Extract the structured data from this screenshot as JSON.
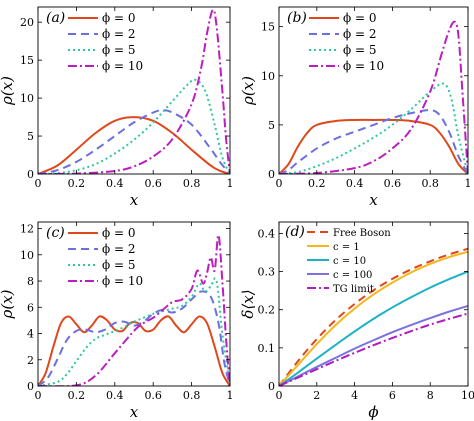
{
  "colors": {
    "red": "#e0471b",
    "blue": "#6b6fe0",
    "green": "#2fc6a0",
    "magenta": "#bd1cc0",
    "yellow": "#f4b81f",
    "teal": "#1bb3c4",
    "violet": "#7a72df",
    "purple": "#b11cc0"
  },
  "chart_data": [
    {
      "type": "line",
      "panel_label": "(a)",
      "xlabel": "x",
      "ylabel": "ρ(x)",
      "xlim": [
        0,
        1
      ],
      "ylim": [
        0,
        22
      ],
      "xticks": [
        "0",
        "0.2",
        "0.4",
        "0.6",
        "0.8",
        "1"
      ],
      "yticks": [
        "0",
        "5",
        "10",
        "15",
        "20"
      ],
      "legend_position": "top-left",
      "series": [
        {
          "name": "ϕ = 0",
          "color": "red",
          "dash": "",
          "x": [
            0,
            0.1,
            0.2,
            0.3,
            0.4,
            0.5,
            0.6,
            0.7,
            0.8,
            0.9,
            0.95,
            1
          ],
          "y": [
            0,
            1.1,
            3.2,
            5.4,
            7.0,
            7.5,
            7.0,
            5.4,
            3.2,
            1.1,
            0.4,
            0
          ]
        },
        {
          "name": "ϕ = 2",
          "color": "blue",
          "dash": "8,5",
          "x": [
            0,
            0.1,
            0.2,
            0.3,
            0.4,
            0.5,
            0.6,
            0.65,
            0.7,
            0.8,
            0.9,
            0.95,
            1
          ],
          "y": [
            0,
            0.5,
            1.6,
            3.2,
            5.0,
            6.8,
            8.1,
            8.4,
            8.1,
            6.5,
            3.3,
            1.5,
            0
          ]
        },
        {
          "name": "ϕ = 5",
          "color": "green",
          "dash": "2,3",
          "x": [
            0,
            0.1,
            0.2,
            0.3,
            0.4,
            0.5,
            0.6,
            0.7,
            0.78,
            0.82,
            0.87,
            0.92,
            0.96,
            1
          ],
          "y": [
            0,
            0.1,
            0.5,
            1.3,
            2.7,
            4.5,
            6.8,
            9.6,
            11.8,
            12.4,
            11.0,
            6.5,
            2.2,
            0
          ]
        },
        {
          "name": "ϕ = 10",
          "color": "magenta",
          "dash": "9,3,2,3",
          "x": [
            0,
            0.2,
            0.4,
            0.5,
            0.6,
            0.7,
            0.8,
            0.85,
            0.88,
            0.91,
            0.93,
            0.96,
            0.98,
            1
          ],
          "y": [
            0,
            0.05,
            0.4,
            1.0,
            2.3,
            4.6,
            9.2,
            14.0,
            18.5,
            21.6,
            19.5,
            11.0,
            4.5,
            0
          ]
        }
      ]
    },
    {
      "type": "line",
      "panel_label": "(b)",
      "xlabel": "x",
      "ylabel": "ρ(x)",
      "xlim": [
        0,
        1
      ],
      "ylim": [
        0,
        17
      ],
      "xticks": [
        "0",
        "0.2",
        "0.4",
        "0.6",
        "0.8",
        "1"
      ],
      "yticks": [
        "0",
        "5",
        "10",
        "15"
      ],
      "legend_position": "top-left",
      "series": [
        {
          "name": "ϕ = 0",
          "color": "red",
          "dash": "",
          "x": [
            0,
            0.05,
            0.1,
            0.15,
            0.2,
            0.3,
            0.4,
            0.5,
            0.6,
            0.7,
            0.8,
            0.85,
            0.9,
            0.95,
            1
          ],
          "y": [
            0,
            1.0,
            2.8,
            4.2,
            5.0,
            5.4,
            5.5,
            5.5,
            5.5,
            5.4,
            5.0,
            4.2,
            2.8,
            1.0,
            0
          ]
        },
        {
          "name": "ϕ = 2",
          "color": "blue",
          "dash": "8,5",
          "x": [
            0,
            0.05,
            0.1,
            0.2,
            0.3,
            0.4,
            0.5,
            0.6,
            0.7,
            0.8,
            0.85,
            0.9,
            0.95,
            1
          ],
          "y": [
            0,
            0.4,
            1.2,
            2.6,
            3.6,
            4.3,
            5.0,
            5.7,
            6.2,
            6.5,
            6.0,
            4.3,
            1.8,
            0
          ]
        },
        {
          "name": "ϕ = 5",
          "color": "green",
          "dash": "2,3",
          "x": [
            0,
            0.1,
            0.2,
            0.3,
            0.4,
            0.5,
            0.6,
            0.7,
            0.8,
            0.87,
            0.91,
            0.95,
            1
          ],
          "y": [
            0,
            0.2,
            0.8,
            1.6,
            2.6,
            3.7,
            5.0,
            6.6,
            8.4,
            9.2,
            7.8,
            3.8,
            0
          ]
        },
        {
          "name": "ϕ = 10",
          "color": "magenta",
          "dash": "9,3,2,3",
          "x": [
            0,
            0.2,
            0.4,
            0.5,
            0.6,
            0.7,
            0.8,
            0.86,
            0.9,
            0.93,
            0.95,
            0.97,
            1
          ],
          "y": [
            0,
            0.1,
            0.6,
            1.3,
            2.6,
            4.6,
            8.4,
            12.2,
            14.6,
            15.5,
            14.0,
            8.5,
            0
          ]
        }
      ]
    },
    {
      "type": "line",
      "panel_label": "(c)",
      "xlabel": "x",
      "ylabel": "ρ(x)",
      "xlim": [
        0,
        1
      ],
      "ylim": [
        0,
        12.5
      ],
      "xticks": [
        "0",
        "0.2",
        "0.4",
        "0.6",
        "0.8",
        "1"
      ],
      "yticks": [
        "0",
        "2",
        "4",
        "6",
        "8",
        "10",
        "12"
      ],
      "legend_position": "top-left",
      "series": [
        {
          "name": "ϕ = 0",
          "color": "red",
          "dash": "",
          "x": [
            0,
            0.04,
            0.08,
            0.12,
            0.16,
            0.2,
            0.24,
            0.28,
            0.32,
            0.36,
            0.4,
            0.44,
            0.48,
            0.52,
            0.56,
            0.6,
            0.64,
            0.68,
            0.72,
            0.76,
            0.8,
            0.84,
            0.88,
            0.92,
            0.96,
            1
          ],
          "y": [
            0,
            1.0,
            3.0,
            4.8,
            5.3,
            4.7,
            4.1,
            4.6,
            5.3,
            5.0,
            4.3,
            4.2,
            4.8,
            4.8,
            4.2,
            4.3,
            5.0,
            5.3,
            4.6,
            4.1,
            4.7,
            5.3,
            4.8,
            3.0,
            1.0,
            0
          ]
        },
        {
          "name": "ϕ = 2",
          "color": "blue",
          "dash": "8,5",
          "x": [
            0,
            0.05,
            0.1,
            0.15,
            0.2,
            0.25,
            0.3,
            0.35,
            0.4,
            0.45,
            0.5,
            0.55,
            0.6,
            0.65,
            0.7,
            0.75,
            0.8,
            0.85,
            0.9,
            0.94,
            0.97,
            1
          ],
          "y": [
            0,
            0.6,
            2.0,
            3.5,
            4.2,
            4.3,
            4.1,
            4.3,
            4.8,
            4.9,
            4.6,
            4.9,
            5.5,
            5.8,
            5.6,
            5.9,
            6.6,
            7.2,
            6.8,
            4.8,
            1.8,
            0
          ]
        },
        {
          "name": "ϕ = 5",
          "color": "green",
          "dash": "2,3",
          "x": [
            0,
            0.1,
            0.15,
            0.2,
            0.25,
            0.3,
            0.35,
            0.4,
            0.45,
            0.5,
            0.55,
            0.6,
            0.65,
            0.7,
            0.75,
            0.8,
            0.84,
            0.87,
            0.9,
            0.93,
            0.96,
            1
          ],
          "y": [
            0,
            0.3,
            0.9,
            1.9,
            2.9,
            3.6,
            3.9,
            4.2,
            4.5,
            4.9,
            5.2,
            5.5,
            5.7,
            5.9,
            6.1,
            6.8,
            7.8,
            7.2,
            7.6,
            8.0,
            4.0,
            0
          ]
        },
        {
          "name": "ϕ = 10",
          "color": "magenta",
          "dash": "9,3,2,3",
          "x": [
            0,
            0.2,
            0.3,
            0.4,
            0.5,
            0.55,
            0.6,
            0.65,
            0.7,
            0.75,
            0.8,
            0.83,
            0.86,
            0.88,
            0.9,
            0.92,
            0.94,
            0.96,
            0.98,
            1
          ],
          "y": [
            0,
            0.05,
            0.8,
            2.5,
            4.2,
            4.8,
            5.2,
            5.8,
            6.4,
            6.6,
            7.4,
            8.8,
            7.8,
            8.6,
            9.8,
            8.8,
            11.5,
            8.0,
            3.5,
            0
          ]
        }
      ]
    },
    {
      "type": "line",
      "panel_label": "(d)",
      "xlabel": "ϕ",
      "ylabel": "δ⟨x⟩",
      "xlim": [
        0,
        10
      ],
      "ylim": [
        0,
        0.43
      ],
      "xticks": [
        "0",
        "2",
        "4",
        "6",
        "8",
        "10"
      ],
      "yticks": [
        "0",
        "0.1",
        "0.2",
        "0.3",
        "0.4"
      ],
      "legend_position": "top-left",
      "series": [
        {
          "name": "Free Boson",
          "color": "red",
          "dash": "8,5",
          "x": [
            0,
            1,
            2,
            3,
            4,
            5,
            6,
            7,
            8,
            9,
            10
          ],
          "y": [
            0,
            0.065,
            0.123,
            0.173,
            0.215,
            0.251,
            0.281,
            0.306,
            0.327,
            0.345,
            0.36
          ]
        },
        {
          "name": "c = 1",
          "color": "yellow",
          "dash": "",
          "x": [
            0,
            1,
            2,
            3,
            4,
            5,
            6,
            7,
            8,
            9,
            10
          ],
          "y": [
            0,
            0.055,
            0.11,
            0.16,
            0.203,
            0.24,
            0.271,
            0.298,
            0.32,
            0.338,
            0.352
          ]
        },
        {
          "name": "c = 10",
          "color": "teal",
          "dash": "",
          "x": [
            0,
            1,
            2,
            3,
            4,
            5,
            6,
            7,
            8,
            9,
            10
          ],
          "y": [
            0,
            0.035,
            0.072,
            0.108,
            0.143,
            0.176,
            0.206,
            0.233,
            0.258,
            0.28,
            0.3
          ]
        },
        {
          "name": "c = 100",
          "color": "violet",
          "dash": "",
          "x": [
            0,
            1,
            2,
            3,
            4,
            5,
            6,
            7,
            8,
            9,
            10
          ],
          "y": [
            0,
            0.025,
            0.05,
            0.074,
            0.098,
            0.12,
            0.141,
            0.16,
            0.178,
            0.195,
            0.21
          ]
        },
        {
          "name": "TG limit",
          "color": "purple",
          "dash": "9,3,2,3",
          "x": [
            0,
            1,
            2,
            3,
            4,
            5,
            6,
            7,
            8,
            9,
            10
          ],
          "y": [
            0,
            0.022,
            0.044,
            0.066,
            0.087,
            0.107,
            0.126,
            0.144,
            0.161,
            0.176,
            0.19
          ]
        }
      ]
    }
  ]
}
